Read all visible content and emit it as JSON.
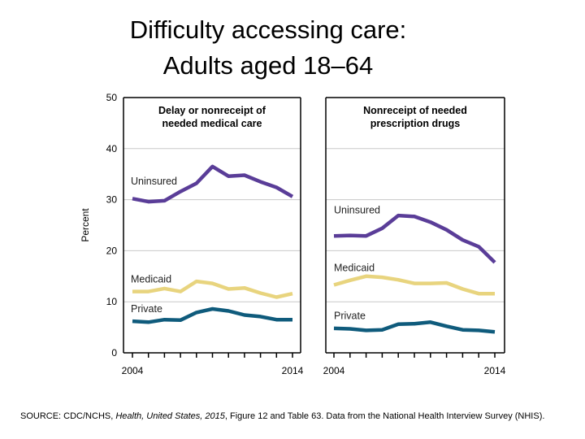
{
  "title_line1": "Difficulty accessing care:",
  "title_line2": "Adults aged 18–64",
  "source": {
    "prefix": "SOURCE: CDC/NCHS, ",
    "italic": "Health, United States, 2015",
    "suffix": ", Figure 12 and Table 63. Data from the National Health Interview Survey (NHIS)."
  },
  "colors": {
    "Uninsured": "#5a3d98",
    "Medicaid": "#e8d47e",
    "Private": "#0f5b7c",
    "grid": "#c8c8c8"
  },
  "chart_data": [
    {
      "type": "line",
      "title": "Delay or nonreceipt of needed medical care",
      "title_lines": [
        "Delay or nonreceipt of",
        "needed medical care"
      ],
      "ylabel": "Percent",
      "ylim": [
        0,
        50
      ],
      "yticks": [
        "0",
        "10",
        "20",
        "30",
        "40",
        "50"
      ],
      "x": [
        2004,
        2005,
        2006,
        2007,
        2008,
        2009,
        2010,
        2011,
        2012,
        2013,
        2014
      ],
      "xtick_labels": [
        "2004",
        "2014"
      ],
      "grid": true,
      "series": [
        {
          "name": "Uninsured",
          "values": [
            30.2,
            29.6,
            29.8,
            31.6,
            33.2,
            36.5,
            34.6,
            34.8,
            33.5,
            32.4,
            30.6
          ]
        },
        {
          "name": "Medicaid",
          "values": [
            12.0,
            12.0,
            12.6,
            12.0,
            14.0,
            13.6,
            12.5,
            12.7,
            11.7,
            10.9,
            11.6
          ]
        },
        {
          "name": "Private",
          "values": [
            6.2,
            6.0,
            6.5,
            6.4,
            7.9,
            8.6,
            8.2,
            7.4,
            7.1,
            6.5,
            6.5
          ]
        }
      ]
    },
    {
      "type": "line",
      "title": "Nonreceipt of needed prescription drugs",
      "title_lines": [
        "Nonreceipt of needed",
        "prescription drugs"
      ],
      "ylim": [
        0,
        50
      ],
      "x": [
        2004,
        2005,
        2006,
        2007,
        2008,
        2009,
        2010,
        2011,
        2012,
        2013,
        2014
      ],
      "xtick_labels": [
        "2004",
        "2014"
      ],
      "grid": true,
      "series": [
        {
          "name": "Uninsured",
          "values": [
            22.9,
            23.0,
            22.9,
            24.4,
            26.9,
            26.7,
            25.6,
            24.1,
            22.1,
            20.8,
            17.7
          ]
        },
        {
          "name": "Medicaid",
          "values": [
            13.3,
            14.2,
            15.0,
            14.8,
            14.3,
            13.6,
            13.6,
            13.7,
            12.5,
            11.6,
            11.6
          ]
        },
        {
          "name": "Private",
          "values": [
            4.8,
            4.7,
            4.4,
            4.5,
            5.6,
            5.7,
            6.0,
            5.2,
            4.5,
            4.4,
            4.1
          ]
        }
      ]
    }
  ]
}
